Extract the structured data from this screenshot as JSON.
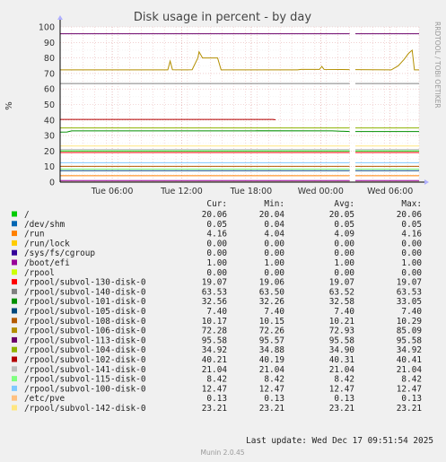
{
  "chart_data": {
    "type": "line",
    "title": "Disk usage in percent - by day",
    "ylabel": "%",
    "ylim": [
      0,
      100
    ],
    "yticks": [
      0,
      10,
      20,
      30,
      40,
      50,
      60,
      70,
      80,
      90,
      100
    ],
    "xlim_hours": [
      0,
      31
    ],
    "x_ticks": [
      {
        "label": "Tue 06:00",
        "at_hour": 4.5
      },
      {
        "label": "Tue 12:00",
        "at_hour": 10.5
      },
      {
        "label": "Tue 18:00",
        "at_hour": 16.5
      },
      {
        "label": "Wed 00:00",
        "at_hour": 22.5
      },
      {
        "label": "Wed 06:00",
        "at_hour": 28.5
      }
    ],
    "gaps_hours": [
      [
        25.0,
        25.5
      ],
      [
        38.0,
        38.5
      ]
    ],
    "side_text": "RRDTOOL / TOBI OETIKER",
    "grid": true,
    "legend_position": "bottom",
    "legend_headers": {
      "cur": "Cur:",
      "min": "Min:",
      "avg": "Avg:",
      "max": "Max:"
    },
    "series": [
      {
        "name": "/",
        "color": "#00cc00",
        "cur": "20.06",
        "min": "20.04",
        "avg": "20.05",
        "max": "20.06",
        "level": 20.05
      },
      {
        "name": "/dev/shm",
        "color": "#0066b3",
        "cur": "0.05",
        "min": "0.04",
        "avg": "0.05",
        "max": "0.05",
        "level": 0.05
      },
      {
        "name": "/run",
        "color": "#ff8000",
        "cur": "4.16",
        "min": "4.04",
        "avg": "4.09",
        "max": "4.16",
        "level": 4.1
      },
      {
        "name": "/run/lock",
        "color": "#ffcc00",
        "cur": "0.00",
        "min": "0.00",
        "avg": "0.00",
        "max": "0.00",
        "level": 0
      },
      {
        "name": "/sys/fs/cgroup",
        "color": "#330099",
        "cur": "0.00",
        "min": "0.00",
        "avg": "0.00",
        "max": "0.00",
        "level": 0
      },
      {
        "name": "/boot/efi",
        "color": "#990099",
        "cur": "1.00",
        "min": "1.00",
        "avg": "1.00",
        "max": "1.00",
        "level": 1.0
      },
      {
        "name": "/rpool",
        "color": "#ccff00",
        "cur": "0.00",
        "min": "0.00",
        "avg": "0.00",
        "max": "0.00",
        "level": 0
      },
      {
        "name": "/rpool/subvol-130-disk-0",
        "color": "#ff0000",
        "cur": "19.07",
        "min": "19.06",
        "avg": "19.07",
        "max": "19.07",
        "level": 19.07
      },
      {
        "name": "/rpool/subvol-140-disk-0",
        "color": "#808080",
        "cur": "63.53",
        "min": "63.50",
        "avg": "63.52",
        "max": "63.53",
        "level": 63.52
      },
      {
        "name": "/rpool/subvol-101-disk-0",
        "color": "#008f00",
        "cur": "32.56",
        "min": "32.26",
        "avg": "32.58",
        "max": "33.05",
        "level": 32.58
      },
      {
        "name": "/rpool/subvol-105-disk-0",
        "color": "#00487d",
        "cur": "7.40",
        "min": "7.40",
        "avg": "7.40",
        "max": "7.40",
        "level": 7.4
      },
      {
        "name": "/rpool/subvol-108-disk-0",
        "color": "#b35a00",
        "cur": "10.17",
        "min": "10.15",
        "avg": "10.21",
        "max": "10.29",
        "level": 10.2
      },
      {
        "name": "/rpool/subvol-106-disk-0",
        "color": "#b38f00",
        "cur": "72.28",
        "min": "72.26",
        "avg": "72.93",
        "max": "85.09",
        "level": 72.28
      },
      {
        "name": "/rpool/subvol-113-disk-0",
        "color": "#6b006b",
        "cur": "95.58",
        "min": "95.57",
        "avg": "95.58",
        "max": "95.58",
        "level": 95.58
      },
      {
        "name": "/rpool/subvol-104-disk-0",
        "color": "#8fb300",
        "cur": "34.92",
        "min": "34.88",
        "avg": "34.90",
        "max": "34.92",
        "level": 34.9
      },
      {
        "name": "/rpool/subvol-102-disk-0",
        "color": "#b30000",
        "cur": "40.21",
        "min": "40.19",
        "avg": "40.31",
        "max": "40.41",
        "level": 40.3
      },
      {
        "name": "/rpool/subvol-141-disk-0",
        "color": "#bebebe",
        "cur": "21.04",
        "min": "21.04",
        "avg": "21.04",
        "max": "21.04",
        "level": 21.04
      },
      {
        "name": "/rpool/subvol-115-disk-0",
        "color": "#80ff80",
        "cur": "8.42",
        "min": "8.42",
        "avg": "8.42",
        "max": "8.42",
        "level": 8.42
      },
      {
        "name": "/rpool/subvol-100-disk-0",
        "color": "#80c9ff",
        "cur": "12.47",
        "min": "12.47",
        "avg": "12.47",
        "max": "12.47",
        "level": 12.47
      },
      {
        "name": "/etc/pve",
        "color": "#ffc080",
        "cur": "0.13",
        "min": "0.13",
        "avg": "0.13",
        "max": "0.13",
        "level": 0.13
      },
      {
        "name": "/rpool/subvol-142-disk-0",
        "color": "#ffe680",
        "cur": "23.21",
        "min": "23.21",
        "avg": "23.21",
        "max": "23.21",
        "level": 23.21
      }
    ],
    "variation": {
      "/rpool/subvol-106-disk-0": [
        [
          0,
          72.3
        ],
        [
          9.3,
          72.3
        ],
        [
          9.5,
          78
        ],
        [
          9.7,
          72.4
        ],
        [
          10.8,
          72.3
        ],
        [
          11.4,
          72.4
        ],
        [
          11.9,
          80
        ],
        [
          12.0,
          84
        ],
        [
          12.3,
          80
        ],
        [
          13.6,
          80
        ],
        [
          13.9,
          72.3
        ],
        [
          20.5,
          72.3
        ],
        [
          20.8,
          72.6
        ],
        [
          22.4,
          72.6
        ],
        [
          22.6,
          74.5
        ],
        [
          22.8,
          72.6
        ],
        [
          25.0,
          72.5
        ],
        [
          25.5,
          72.5
        ],
        [
          28.6,
          72.3
        ],
        [
          29.2,
          75
        ],
        [
          29.7,
          79
        ],
        [
          30.1,
          83
        ],
        [
          30.4,
          85
        ],
        [
          30.6,
          72.3
        ],
        [
          31,
          72.3
        ]
      ],
      "/rpool/subvol-101-disk-0": [
        [
          0,
          32.2
        ],
        [
          0.6,
          32.3
        ],
        [
          1.0,
          33.0
        ],
        [
          16.8,
          33.0
        ],
        [
          17.0,
          33.05
        ],
        [
          23.5,
          33.0
        ],
        [
          25.0,
          32.6
        ],
        [
          25.5,
          32.6
        ],
        [
          31,
          32.6
        ]
      ],
      "/rpool/subvol-102-disk-0": [
        [
          0,
          40.4
        ],
        [
          18.4,
          40.4
        ],
        [
          18.6,
          40.2
        ],
        [
          31,
          40.2
        ]
      ]
    },
    "footer_text": "Last update: Wed Dec 17 09:51:54 2025",
    "generator": "Munin 2.0.45"
  }
}
